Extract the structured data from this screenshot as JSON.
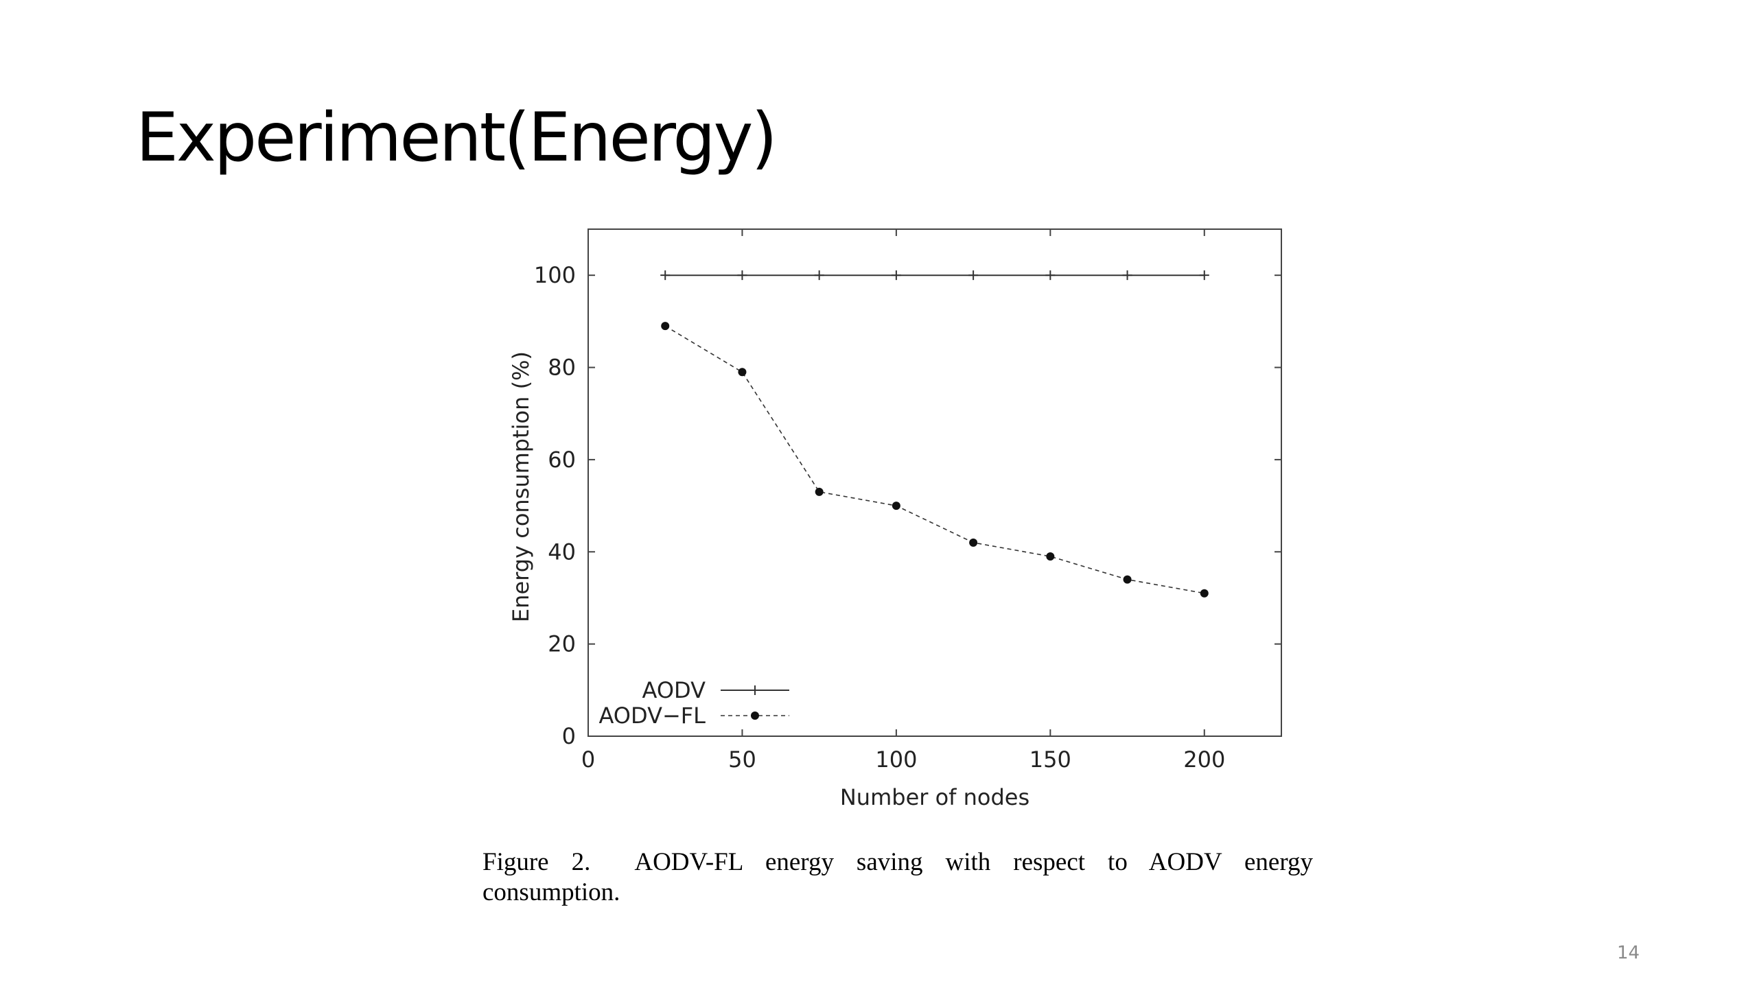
{
  "slide": {
    "title": "Experiment(Energy)",
    "page_number": "14"
  },
  "caption": {
    "label": "Figure 2.",
    "text": "AODV-FL energy saving with respect to AODV energy consumption."
  },
  "chart_data": {
    "type": "line",
    "title": "",
    "xlabel": "Number of nodes",
    "ylabel": "Energy consumption (%)",
    "xlim": [
      0,
      225
    ],
    "ylim": [
      0,
      110
    ],
    "xticks": [
      0,
      50,
      100,
      150,
      200
    ],
    "yticks": [
      0,
      20,
      40,
      60,
      80,
      100
    ],
    "grid": false,
    "legend_position": "bottom-left",
    "x": [
      25,
      50,
      75,
      100,
      125,
      150,
      175,
      200
    ],
    "series": [
      {
        "name": "AODV",
        "values": [
          100,
          100,
          100,
          100,
          100,
          100,
          100,
          100
        ],
        "style": "solid",
        "marker": "plus",
        "color": "#333333"
      },
      {
        "name": "AODV−FL",
        "values": [
          89,
          79,
          53,
          50,
          42,
          39,
          34,
          31
        ],
        "style": "dashed",
        "marker": "dot",
        "color": "#333333"
      }
    ]
  }
}
